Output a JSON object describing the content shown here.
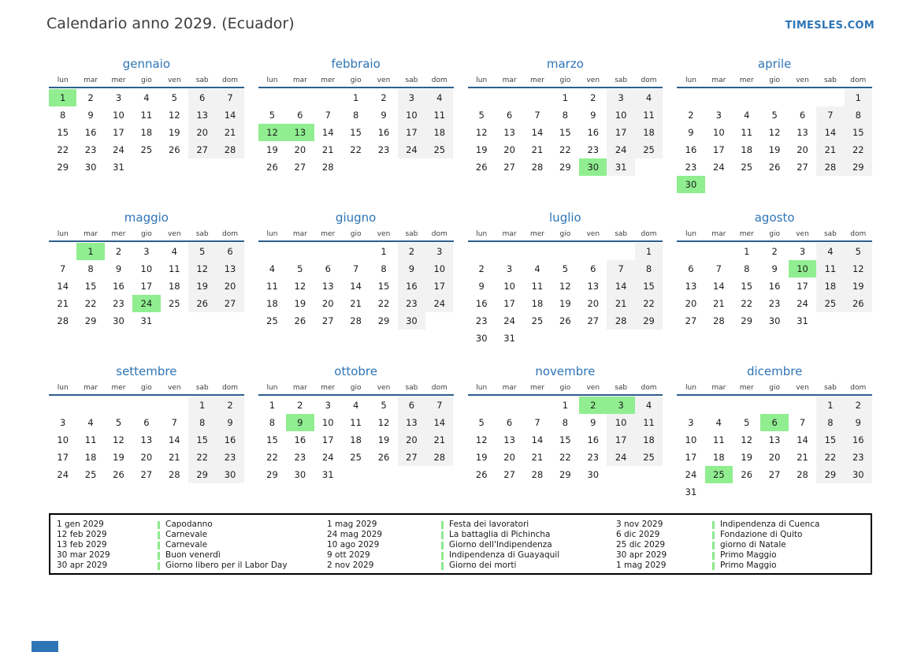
{
  "page": {
    "title": "Calendario anno 2029. (Ecuador)",
    "brand": "TIMESLES.COM"
  },
  "weekdays": [
    "lun",
    "mar",
    "mer",
    "gio",
    "ven",
    "sab",
    "dom"
  ],
  "months": [
    {
      "name": "gennaio",
      "first_dow": 1,
      "days": 31,
      "highlights": [
        1
      ]
    },
    {
      "name": "febbraio",
      "first_dow": 4,
      "days": 28,
      "highlights": [
        12,
        13
      ]
    },
    {
      "name": "marzo",
      "first_dow": 4,
      "days": 31,
      "highlights": [
        30
      ]
    },
    {
      "name": "aprile",
      "first_dow": 7,
      "days": 30,
      "highlights": [
        30
      ]
    },
    {
      "name": "maggio",
      "first_dow": 2,
      "days": 31,
      "highlights": [
        1,
        24
      ]
    },
    {
      "name": "giugno",
      "first_dow": 5,
      "days": 30,
      "highlights": []
    },
    {
      "name": "luglio",
      "first_dow": 7,
      "days": 31,
      "highlights": []
    },
    {
      "name": "agosto",
      "first_dow": 3,
      "days": 31,
      "highlights": [
        10
      ]
    },
    {
      "name": "settembre",
      "first_dow": 6,
      "days": 30,
      "highlights": []
    },
    {
      "name": "ottobre",
      "first_dow": 1,
      "days": 31,
      "highlights": [
        9
      ]
    },
    {
      "name": "novembre",
      "first_dow": 4,
      "days": 30,
      "highlights": [
        2,
        3
      ]
    },
    {
      "name": "dicembre",
      "first_dow": 6,
      "days": 31,
      "highlights": [
        6,
        25
      ]
    }
  ],
  "legend": {
    "groups": [
      {
        "items": [
          {
            "date": "1 gen 2029",
            "name": "Capodanno"
          },
          {
            "date": "12 feb 2029",
            "name": "Carnevale"
          },
          {
            "date": "13 feb 2029",
            "name": "Carnevale"
          },
          {
            "date": "30 mar 2029",
            "name": "Buon venerdì"
          },
          {
            "date": "30 apr 2029",
            "name": "Giorno libero per il Labor Day"
          }
        ]
      },
      {
        "items": [
          {
            "date": "1 mag 2029",
            "name": "Festa dei lavoratori"
          },
          {
            "date": "24 mag 2029",
            "name": "La battaglia di Pichincha"
          },
          {
            "date": "10 ago 2029",
            "name": "Giorno dell'Indipendenza"
          },
          {
            "date": "9 ott 2029",
            "name": "Indipendenza di Guayaquil"
          },
          {
            "date": "2 nov 2029",
            "name": "Giorno dei morti"
          }
        ]
      },
      {
        "items": [
          {
            "date": "3 nov 2029",
            "name": "Indipendenza di Cuenca"
          },
          {
            "date": "6 dic 2029",
            "name": "Fondazione di Quito"
          },
          {
            "date": "25 dic 2029",
            "name": "giorno di Natale"
          },
          {
            "date": "30 apr 2029",
            "name": "Primo Maggio"
          },
          {
            "date": "1 mag 2029",
            "name": "Primo Maggio"
          }
        ]
      }
    ]
  },
  "colors": {
    "accent_blue": "#2e75b6",
    "header_line_blue": "#2d5f8e",
    "holiday_green": "#90ee90",
    "legend_tick_green": "#8ce98c",
    "weekend_gray": "#f2f2f2"
  }
}
